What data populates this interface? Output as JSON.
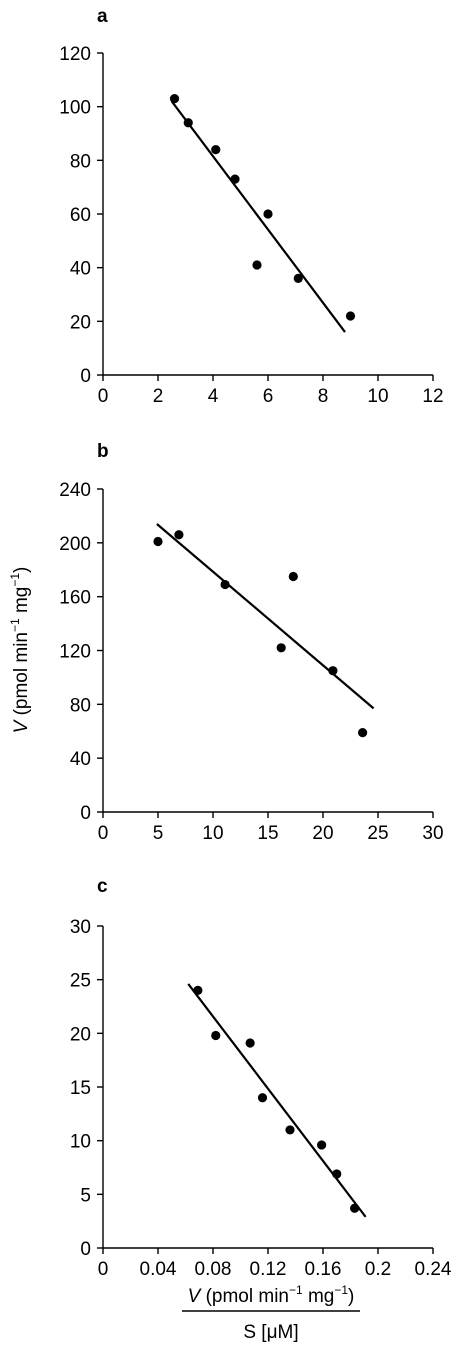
{
  "chart_data": [
    {
      "panel": "a",
      "type": "scatter",
      "xlim": [
        0,
        12
      ],
      "ylim": [
        0,
        120
      ],
      "x_ticks": [
        "0",
        "2",
        "4",
        "6",
        "8",
        "10",
        "12"
      ],
      "y_ticks": [
        "0",
        "20",
        "40",
        "60",
        "80",
        "100",
        "120"
      ],
      "points": [
        {
          "x": 2.6,
          "y": 103
        },
        {
          "x": 3.1,
          "y": 94
        },
        {
          "x": 4.1,
          "y": 84
        },
        {
          "x": 4.8,
          "y": 73
        },
        {
          "x": 6.0,
          "y": 60
        },
        {
          "x": 5.6,
          "y": 41
        },
        {
          "x": 7.1,
          "y": 36
        },
        {
          "x": 9.0,
          "y": 22
        }
      ],
      "fit_line": [
        {
          "x": 2.5,
          "y": 102
        },
        {
          "x": 8.8,
          "y": 16
        }
      ]
    },
    {
      "panel": "b",
      "type": "scatter",
      "xlim": [
        0,
        30
      ],
      "ylim": [
        0,
        240
      ],
      "x_ticks": [
        "0",
        "5",
        "10",
        "15",
        "20",
        "25",
        "30"
      ],
      "y_ticks": [
        "0",
        "40",
        "80",
        "120",
        "160",
        "200",
        "240"
      ],
      "ylabel_italic": "V",
      "ylabel_rest": " (pmol min",
      "ylabel_sup1": "−1",
      "ylabel_mid": " mg",
      "ylabel_sup2": "−1",
      "ylabel_end": ")",
      "points": [
        {
          "x": 5.0,
          "y": 201
        },
        {
          "x": 6.9,
          "y": 206
        },
        {
          "x": 11.1,
          "y": 169
        },
        {
          "x": 17.3,
          "y": 175
        },
        {
          "x": 16.2,
          "y": 122
        },
        {
          "x": 20.9,
          "y": 105
        },
        {
          "x": 23.6,
          "y": 59
        }
      ],
      "fit_line": [
        {
          "x": 4.9,
          "y": 214
        },
        {
          "x": 24.6,
          "y": 77
        }
      ]
    },
    {
      "panel": "c",
      "type": "scatter",
      "xlim": [
        0,
        0.24
      ],
      "ylim": [
        0,
        30
      ],
      "x_ticks": [
        "0",
        "0.04",
        "0.08",
        "0.12",
        "0.16",
        "0.2",
        "0.24"
      ],
      "y_ticks": [
        "0",
        "5",
        "10",
        "15",
        "20",
        "25",
        "30"
      ],
      "xlabel_num_italic": "V",
      "xlabel_num_rest": " (pmol min",
      "xlabel_num_sup1": "−1",
      "xlabel_num_mid": " mg",
      "xlabel_num_sup2": "−1",
      "xlabel_num_end": ")",
      "xlabel_den": "S [μM]",
      "points": [
        {
          "x": 0.069,
          "y": 24.0
        },
        {
          "x": 0.082,
          "y": 19.8
        },
        {
          "x": 0.107,
          "y": 19.1
        },
        {
          "x": 0.116,
          "y": 14.0
        },
        {
          "x": 0.136,
          "y": 11.0
        },
        {
          "x": 0.159,
          "y": 9.6
        },
        {
          "x": 0.17,
          "y": 6.9
        },
        {
          "x": 0.183,
          "y": 3.7
        }
      ],
      "fit_line": [
        {
          "x": 0.062,
          "y": 24.6
        },
        {
          "x": 0.191,
          "y": 2.9
        }
      ]
    }
  ]
}
